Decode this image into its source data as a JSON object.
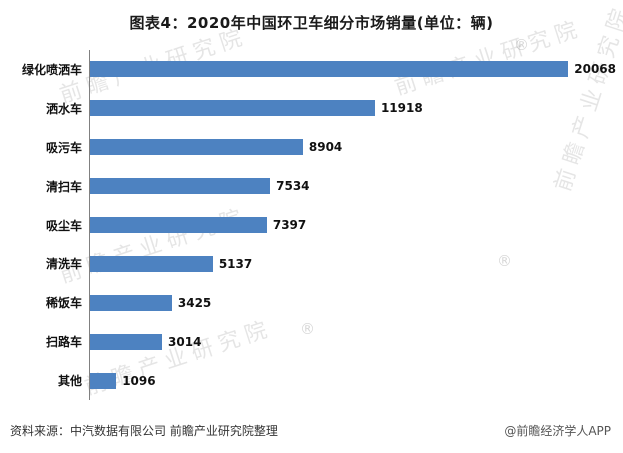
{
  "title": "图表4：2020年中国环卫车细分市场销量(单位：辆)",
  "chart_data": {
    "type": "bar",
    "orientation": "horizontal",
    "title": "图表4：2020年中国环卫车细分市场销量(单位：辆)",
    "unit": "辆",
    "categories": [
      "绿化喷洒车",
      "洒水车",
      "吸污车",
      "清扫车",
      "吸尘车",
      "清洗车",
      "稀饭车",
      "扫路车",
      "其他"
    ],
    "values": [
      20068,
      11918,
      8904,
      7534,
      7397,
      5137,
      3425,
      3014,
      1096
    ],
    "xlim": [
      0,
      22000
    ],
    "bar_color": "#4d82c1",
    "value_labels": true,
    "grid": false,
    "legend": false
  },
  "footer": {
    "source": "资料来源：中汽数据有限公司 前瞻产业研究院整理",
    "brand": "@前瞻经济学人APP"
  },
  "watermark": {
    "text": "前瞻产业研究院",
    "registered": "®"
  }
}
